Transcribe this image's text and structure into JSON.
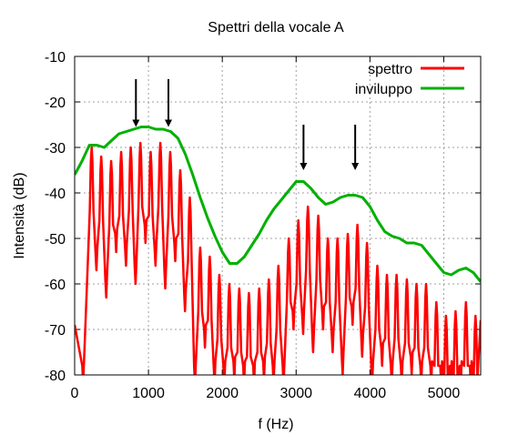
{
  "chart_data": {
    "type": "line",
    "title": "Spettri della vocale A",
    "xlabel": "f (Hz)",
    "ylabel": "Intensità (dB)",
    "xlim": [
      0,
      5500
    ],
    "ylim": [
      -80,
      -10
    ],
    "xticks": [
      0,
      1000,
      2000,
      3000,
      4000,
      5000
    ],
    "xtick_labels": [
      "0",
      "1000",
      "2000",
      "3000",
      "4000",
      "5000"
    ],
    "yticks": [
      -80,
      -70,
      -60,
      -50,
      -40,
      -30,
      -20,
      -10
    ],
    "ytick_labels": [
      "-80",
      "-70",
      "-60",
      "-50",
      "-40",
      "-30",
      "-20",
      "-10"
    ],
    "grid": true,
    "legend_position": "top-right",
    "series": [
      {
        "name": "spettro",
        "color": "#ff0000",
        "harmonic_spacing_hz": 134,
        "peaks": [
          {
            "x": 230,
            "y": -30
          },
          {
            "x": 360,
            "y": -32
          },
          {
            "x": 495,
            "y": -33
          },
          {
            "x": 630,
            "y": -31
          },
          {
            "x": 760,
            "y": -30
          },
          {
            "x": 890,
            "y": -29
          },
          {
            "x": 1030,
            "y": -31
          },
          {
            "x": 1160,
            "y": -29
          },
          {
            "x": 1295,
            "y": -31
          },
          {
            "x": 1430,
            "y": -35
          },
          {
            "x": 1560,
            "y": -41
          },
          {
            "x": 1700,
            "y": -52
          },
          {
            "x": 1830,
            "y": -54
          },
          {
            "x": 1960,
            "y": -58
          },
          {
            "x": 2095,
            "y": -60
          },
          {
            "x": 2230,
            "y": -61
          },
          {
            "x": 2360,
            "y": -62
          },
          {
            "x": 2500,
            "y": -61
          },
          {
            "x": 2630,
            "y": -59
          },
          {
            "x": 2760,
            "y": -56
          },
          {
            "x": 2900,
            "y": -50
          },
          {
            "x": 3030,
            "y": -46
          },
          {
            "x": 3160,
            "y": -43
          },
          {
            "x": 3300,
            "y": -45
          },
          {
            "x": 3430,
            "y": -50
          },
          {
            "x": 3560,
            "y": -50
          },
          {
            "x": 3700,
            "y": -49
          },
          {
            "x": 3830,
            "y": -47
          },
          {
            "x": 3960,
            "y": -51
          },
          {
            "x": 4100,
            "y": -56
          },
          {
            "x": 4230,
            "y": -58
          },
          {
            "x": 4360,
            "y": -58
          },
          {
            "x": 4500,
            "y": -59
          },
          {
            "x": 4630,
            "y": -60
          },
          {
            "x": 4760,
            "y": -60
          },
          {
            "x": 4900,
            "y": -64
          },
          {
            "x": 5030,
            "y": -67
          },
          {
            "x": 5160,
            "y": -66
          },
          {
            "x": 5300,
            "y": -64
          },
          {
            "x": 5430,
            "y": -67
          }
        ],
        "start": {
          "x": 0,
          "y": -69
        },
        "end": {
          "x": 5500,
          "y": -68
        }
      },
      {
        "name": "inviluppo",
        "color": "#00b000",
        "x": [
          0,
          100,
          200,
          300,
          400,
          500,
          600,
          700,
          800,
          900,
          1000,
          1100,
          1200,
          1300,
          1400,
          1500,
          1600,
          1700,
          1800,
          1900,
          2000,
          2100,
          2200,
          2300,
          2400,
          2500,
          2600,
          2700,
          2800,
          2900,
          3000,
          3100,
          3200,
          3300,
          3400,
          3500,
          3600,
          3700,
          3800,
          3900,
          4000,
          4100,
          4200,
          4300,
          4400,
          4500,
          4600,
          4700,
          4800,
          4900,
          5000,
          5100,
          5200,
          5300,
          5400,
          5500
        ],
        "values": [
          -36,
          -33,
          -29.5,
          -29.5,
          -30,
          -28.5,
          -27,
          -26.5,
          -26,
          -25.5,
          -25.5,
          -26,
          -26,
          -26.5,
          -28,
          -31.5,
          -36,
          -41,
          -45.5,
          -49.5,
          -53,
          -55.5,
          -55.5,
          -54,
          -51.5,
          -49,
          -46,
          -43.5,
          -41.5,
          -39.5,
          -37.5,
          -37.5,
          -39,
          -41,
          -42.5,
          -42,
          -41,
          -40.5,
          -40.5,
          -41,
          -43,
          -46,
          -48.5,
          -49.5,
          -50,
          -51,
          -51,
          -51.5,
          -53.5,
          -55.5,
          -57.5,
          -58,
          -57,
          -56.5,
          -57.5,
          -59.5
        ]
      }
    ],
    "annotations": [
      {
        "type": "arrow",
        "x": 830,
        "y_from": -15,
        "y_to": -25.5
      },
      {
        "type": "arrow",
        "x": 1270,
        "y_from": -15,
        "y_to": -25.5
      },
      {
        "type": "arrow",
        "x": 3100,
        "y_from": -25,
        "y_to": -35
      },
      {
        "type": "arrow",
        "x": 3800,
        "y_from": -25,
        "y_to": -35
      }
    ]
  }
}
